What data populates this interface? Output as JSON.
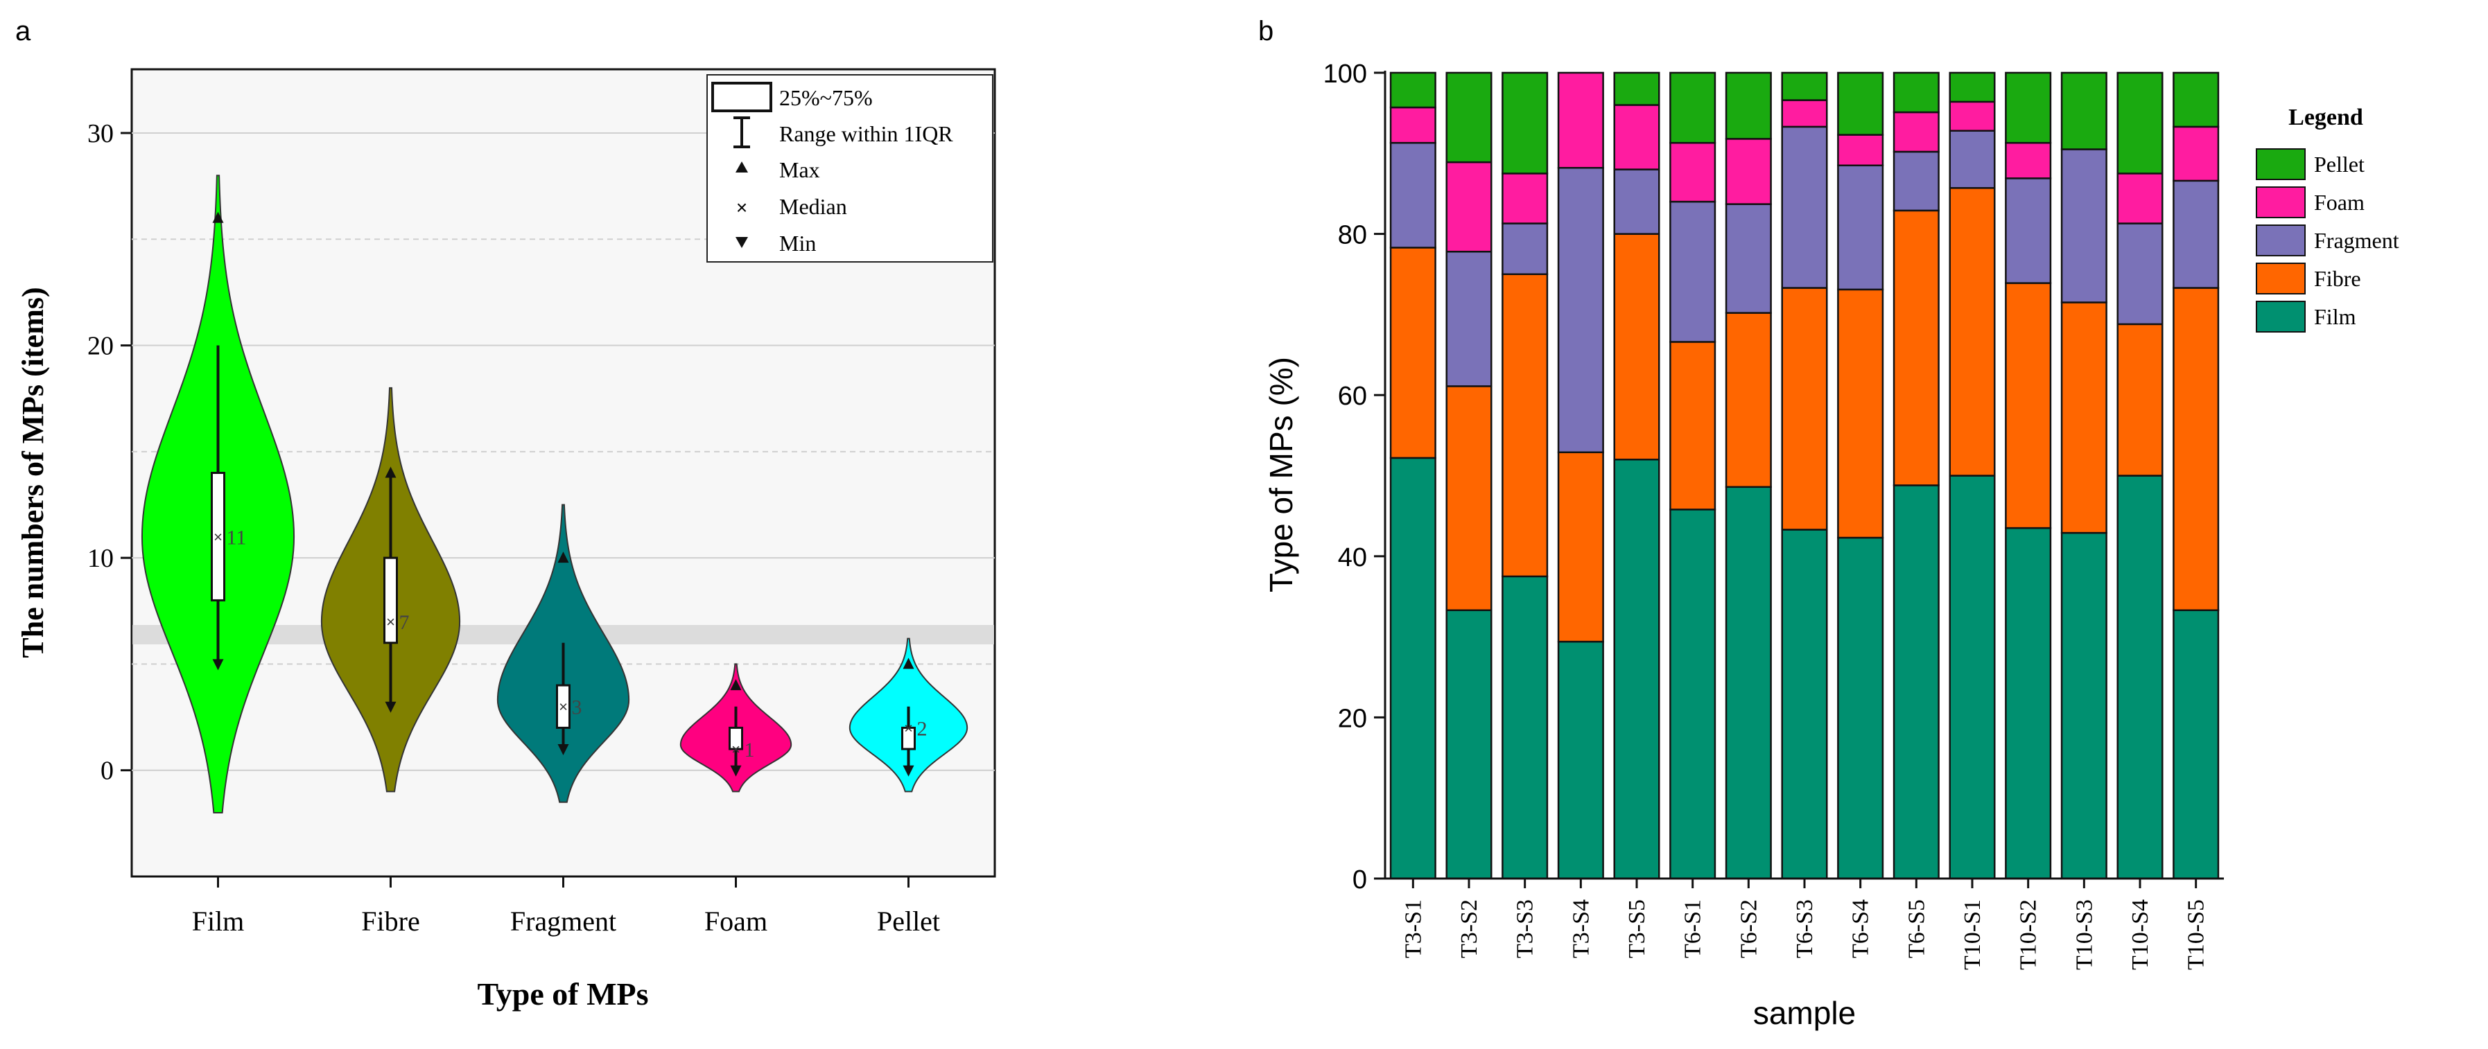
{
  "chart_data": [
    {
      "panel_label": "a",
      "type": "violin",
      "title": "",
      "xlabel": "Type of MPs",
      "ylabel": "The numbers of MPs (items)",
      "ylim": [
        -5,
        33
      ],
      "yticks": [
        0,
        10,
        20,
        30
      ],
      "categories": [
        "Film",
        "Fibre",
        "Fragment",
        "Foam",
        "Pellet"
      ],
      "colors": [
        "#00ff00",
        "#808000",
        "#007a7a",
        "#ff0080",
        "#00ffff"
      ],
      "violin_range": [
        [
          -2,
          28
        ],
        [
          -1,
          18
        ],
        [
          -1.5,
          12.5
        ],
        [
          -1,
          5
        ],
        [
          -1,
          6.2
        ]
      ],
      "violin_peak": [
        11,
        7,
        3.3,
        1.2,
        2
      ],
      "violin_halfwidth": [
        0.44,
        0.4,
        0.38,
        0.32,
        0.34
      ],
      "q1": [
        8,
        6,
        2,
        1,
        1
      ],
      "q3": [
        14,
        10,
        4,
        2,
        2
      ],
      "whisker_low": [
        5,
        3,
        1,
        0,
        0
      ],
      "whisker_high": [
        20,
        14,
        6,
        3,
        3
      ],
      "median": [
        11,
        7,
        3,
        1,
        2
      ],
      "median_labels": [
        "11",
        "7",
        "3",
        "1",
        "2"
      ],
      "max": [
        26,
        14,
        10,
        4,
        5
      ],
      "min": [
        5,
        3,
        1,
        0,
        0
      ],
      "grid": true,
      "legend": {
        "position": "top-right",
        "entries": [
          "25%~75%",
          "Range within 1IQR",
          "Max",
          "Median",
          "Min"
        ]
      }
    },
    {
      "panel_label": "b",
      "type": "bar",
      "stacked": true,
      "title": "",
      "xlabel": "sample",
      "ylabel": "Type of MPs (%)",
      "ylim": [
        0,
        100
      ],
      "yticks": [
        0,
        20,
        40,
        60,
        80,
        100
      ],
      "categories": [
        "T3-S1",
        "T3-S2",
        "T3-S3",
        "T3-S4",
        "T3-S5",
        "T6-S1",
        "T6-S2",
        "T6-S3",
        "T6-S4",
        "T6-S5",
        "T10-S1",
        "T10-S2",
        "T10-S3",
        "T10-S4",
        "T10-S5"
      ],
      "series": [
        {
          "name": "Film",
          "color": "#009070",
          "values": [
            52.2,
            33.3,
            37.5,
            29.4,
            52.0,
            45.8,
            48.6,
            43.3,
            42.3,
            48.8,
            50.0,
            43.5,
            42.9,
            50.0,
            33.3
          ]
        },
        {
          "name": "Fibre",
          "color": "#ff6600",
          "values": [
            26.1,
            27.8,
            37.5,
            23.5,
            28.0,
            20.8,
            21.6,
            30.0,
            30.8,
            34.1,
            35.7,
            30.4,
            28.6,
            18.8,
            40.0
          ]
        },
        {
          "name": "Fragment",
          "color": "#7a72b8",
          "values": [
            13.0,
            16.7,
            6.3,
            35.3,
            8.0,
            17.4,
            13.5,
            20.0,
            15.4,
            7.3,
            7.1,
            13.0,
            19.0,
            12.5,
            13.3
          ]
        },
        {
          "name": "Foam",
          "color": "#ff1ca0",
          "values": [
            4.4,
            11.1,
            6.2,
            11.8,
            8.0,
            7.3,
            8.1,
            3.3,
            3.8,
            4.9,
            3.6,
            4.4,
            0.0,
            6.2,
            6.7
          ]
        },
        {
          "name": "Pellet",
          "color": "#1aaa10",
          "values": [
            4.3,
            11.1,
            12.5,
            0.0,
            4.0,
            8.7,
            8.2,
            3.4,
            7.7,
            4.9,
            3.6,
            8.7,
            9.5,
            12.5,
            6.7
          ]
        }
      ],
      "legend": {
        "title": "Legend",
        "position": "right"
      }
    }
  ]
}
